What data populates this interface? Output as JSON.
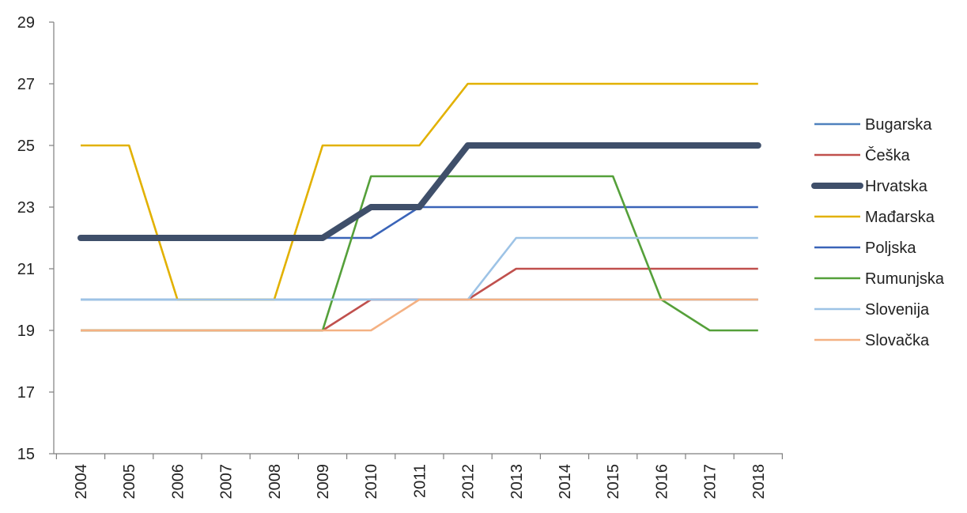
{
  "chart_data": {
    "type": "line",
    "title": "",
    "xlabel": "",
    "ylabel": "",
    "categories": [
      "2004",
      "2005",
      "2006",
      "2007",
      "2008",
      "2009",
      "2010",
      "2011",
      "2012",
      "2013",
      "2014",
      "2015",
      "2016",
      "2017",
      "2018"
    ],
    "ylim": [
      15,
      29
    ],
    "yticks": [
      15,
      17,
      19,
      21,
      23,
      25,
      27,
      29
    ],
    "grid": false,
    "legend_position": "right",
    "series": [
      {
        "name": "Bugarska",
        "color": "#4f81bd",
        "bold": false,
        "values": [
          20,
          20,
          20,
          20,
          20,
          20,
          20,
          20,
          20,
          20,
          20,
          20,
          20,
          20,
          20
        ]
      },
      {
        "name": "Češka",
        "color": "#c0504d",
        "bold": false,
        "values": [
          19,
          19,
          19,
          19,
          19,
          19,
          20,
          20,
          20,
          21,
          21,
          21,
          21,
          21,
          21
        ]
      },
      {
        "name": "Hrvatska",
        "color": "#3f4f6a",
        "bold": true,
        "values": [
          22,
          22,
          22,
          22,
          22,
          22,
          23,
          23,
          25,
          25,
          25,
          25,
          25,
          25,
          25
        ]
      },
      {
        "name": "Mađarska",
        "color": "#e2b100",
        "bold": false,
        "values": [
          25,
          25,
          20,
          20,
          20,
          25,
          25,
          25,
          27,
          27,
          27,
          27,
          27,
          27,
          27
        ]
      },
      {
        "name": "Poljska",
        "color": "#3a64b8",
        "bold": false,
        "values": [
          22,
          22,
          22,
          22,
          22,
          22,
          22,
          23,
          23,
          23,
          23,
          23,
          23,
          23,
          23
        ]
      },
      {
        "name": "Rumunjska",
        "color": "#55a03a",
        "bold": false,
        "values": [
          19,
          19,
          19,
          19,
          19,
          19,
          24,
          24,
          24,
          24,
          24,
          24,
          20,
          19,
          19
        ]
      },
      {
        "name": "Slovenija",
        "color": "#9dc3e6",
        "bold": false,
        "values": [
          20,
          20,
          20,
          20,
          20,
          20,
          20,
          20,
          20,
          22,
          22,
          22,
          22,
          22,
          22
        ]
      },
      {
        "name": "Slovačka",
        "color": "#f4b183",
        "bold": false,
        "values": [
          19,
          19,
          19,
          19,
          19,
          19,
          19,
          20,
          20,
          20,
          20,
          20,
          20,
          20,
          20
        ]
      }
    ]
  }
}
